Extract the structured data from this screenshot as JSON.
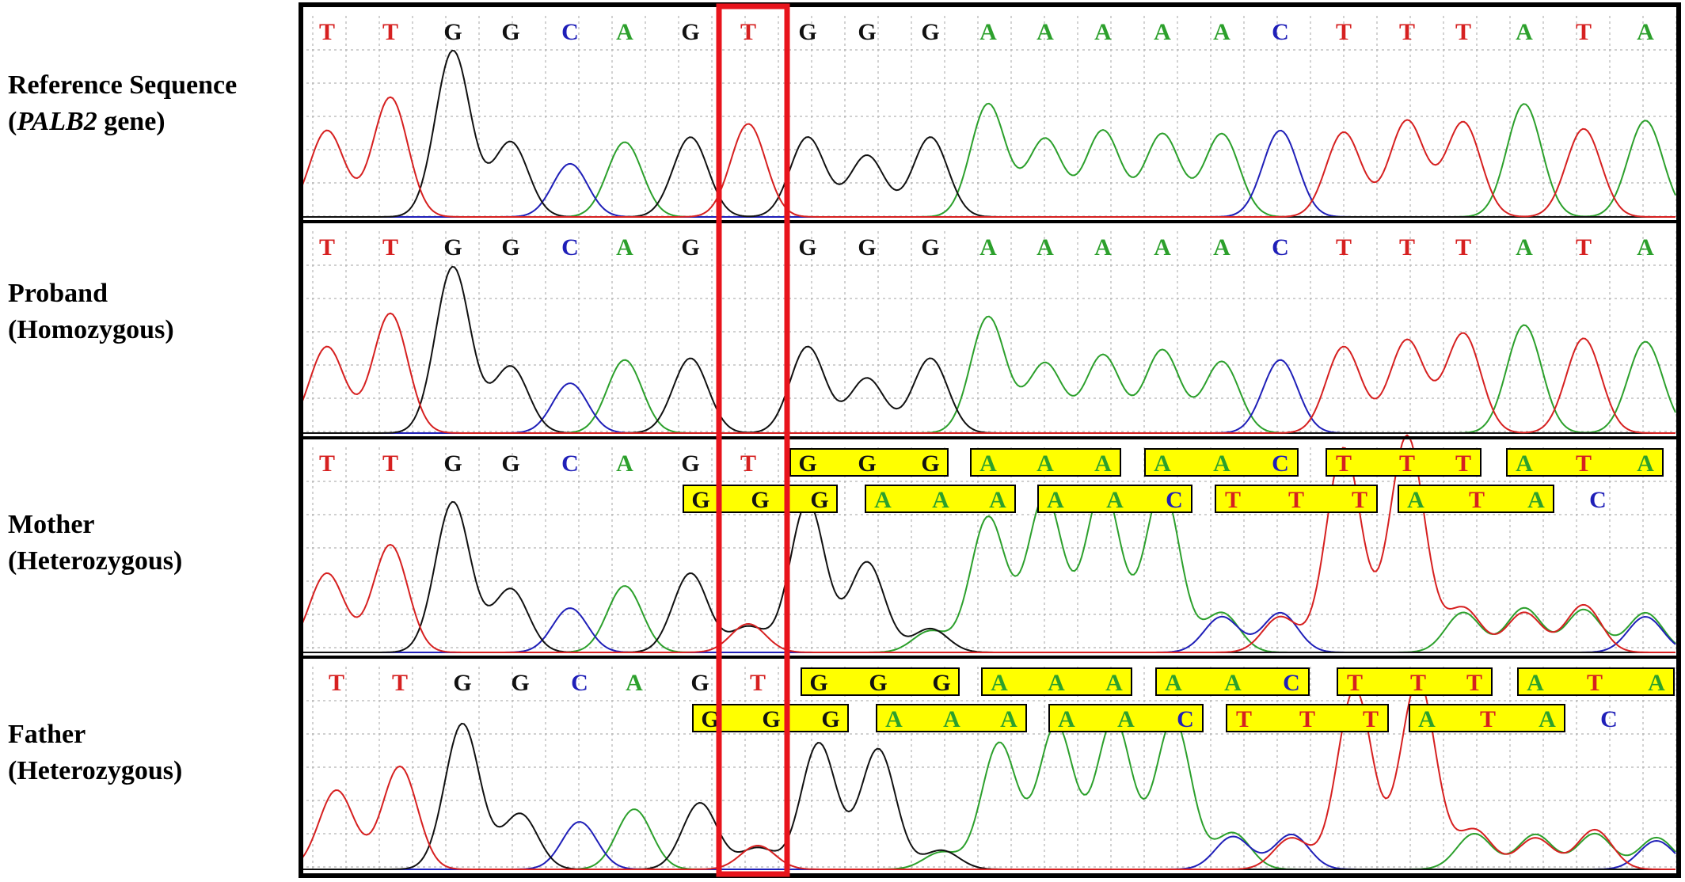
{
  "colors": {
    "A": "#2ca02c",
    "C": "#1f1fb8",
    "G": "#111111",
    "T": "#d62020",
    "frame": "#000000",
    "highlight_box": "#e8141c",
    "base_box_fill": "#ffff00"
  },
  "panels": [
    {
      "id": "reference",
      "label_line1": "Reference Sequence",
      "label_line2_italic": "PALB2",
      "label_line2_rest": " gene)",
      "label_line2_open": "(",
      "bases": [
        "T",
        "T",
        "G",
        "G",
        "C",
        "A",
        "G",
        "T",
        "G",
        "G",
        "G",
        "A",
        "A",
        "A",
        "A",
        "A",
        "C",
        "T",
        "T",
        "T",
        "A",
        "T",
        "A"
      ],
      "secondary_bases": []
    },
    {
      "id": "proband",
      "label_line1": "Proband",
      "label_line2": "(Homozygous)",
      "bases": [
        "T",
        "T",
        "G",
        "G",
        "C",
        "A",
        "G",
        "",
        "G",
        "G",
        "G",
        "A",
        "A",
        "A",
        "A",
        "A",
        "C",
        "T",
        "T",
        "T",
        "A",
        "T",
        "A"
      ],
      "secondary_bases": []
    },
    {
      "id": "mother",
      "label_line1": "Mother",
      "label_line2": "(Heterozygous)",
      "bases": [
        "T",
        "T",
        "G",
        "G",
        "C",
        "A",
        "G",
        "T",
        "G",
        "G",
        "G",
        "A",
        "A",
        "A",
        "A",
        "A",
        "C",
        "T",
        "T",
        "T",
        "A",
        "T",
        "A"
      ],
      "secondary_bases": [
        "G",
        "G",
        "G",
        "A",
        "A",
        "A",
        "A",
        "A",
        "C",
        "T",
        "T",
        "T",
        "A",
        "T",
        "A",
        "C"
      ]
    },
    {
      "id": "father",
      "label_line1": "Father",
      "label_line2": "(Heterozygous)",
      "bases": [
        "T",
        "T",
        "G",
        "G",
        "C",
        "A",
        "G",
        "T",
        "G",
        "G",
        "G",
        "A",
        "A",
        "A",
        "A",
        "A",
        "C",
        "T",
        "T",
        "T",
        "A",
        "T",
        "A"
      ],
      "secondary_bases": [
        "G",
        "G",
        "G",
        "A",
        "A",
        "A",
        "A",
        "A",
        "C",
        "T",
        "T",
        "T",
        "A",
        "T",
        "A",
        "C"
      ]
    }
  ]
}
